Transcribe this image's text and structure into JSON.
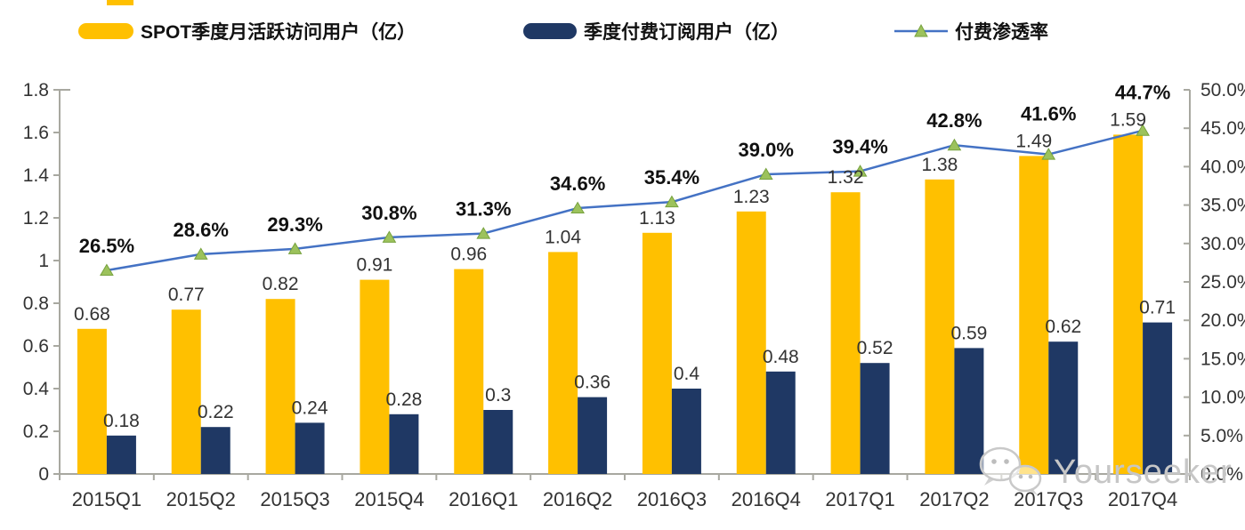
{
  "legend": [
    {
      "label": "SPOT季度月活跃访问用户（亿）",
      "color": "#FFC000"
    },
    {
      "label": "季度付费订阅用户（亿）",
      "color": "#1F3864"
    },
    {
      "label": "付费渗透率",
      "color": "#4472C4",
      "marker_color": "#9CC25C"
    }
  ],
  "chart_data": {
    "type": "bar+line",
    "categories": [
      "2015Q1",
      "2015Q2",
      "2015Q3",
      "2015Q4",
      "2016Q1",
      "2016Q2",
      "2016Q3",
      "2016Q4",
      "2017Q1",
      "2017Q2",
      "2017Q3",
      "2017Q4"
    ],
    "series": [
      {
        "name": "SPOT季度月活跃访问用户（亿）",
        "type": "bar",
        "color": "#FFC000",
        "values": [
          0.68,
          0.77,
          0.82,
          0.91,
          0.96,
          1.04,
          1.13,
          1.23,
          1.32,
          1.38,
          1.49,
          1.59
        ],
        "labels": [
          "0.68",
          "0.77",
          "0.82",
          "0.91",
          "0.96",
          "1.04",
          "1.13",
          "1.23",
          "1.32",
          "1.38",
          "1.49",
          "1.59"
        ]
      },
      {
        "name": "季度付费订阅用户（亿）",
        "type": "bar",
        "color": "#1F3864",
        "values": [
          0.18,
          0.22,
          0.24,
          0.28,
          0.3,
          0.36,
          0.4,
          0.48,
          0.52,
          0.59,
          0.62,
          0.71
        ],
        "labels": [
          "0.18",
          "0.22",
          "0.24",
          "0.28",
          "0.3",
          "0.36",
          "0.4",
          "0.48",
          "0.52",
          "0.59",
          "0.62",
          "0.71"
        ]
      },
      {
        "name": "付费渗透率",
        "type": "line",
        "axis": "right",
        "color": "#4472C4",
        "marker": "triangle",
        "marker_color": "#9CC25C",
        "values": [
          26.5,
          28.6,
          29.3,
          30.8,
          31.3,
          34.6,
          35.4,
          39.0,
          39.4,
          42.8,
          41.6,
          44.7
        ],
        "labels": [
          "26.5%",
          "28.6%",
          "29.3%",
          "30.8%",
          "31.3%",
          "34.6%",
          "35.4%",
          "39.0%",
          "39.4%",
          "42.8%",
          "41.6%",
          "44.7%"
        ]
      }
    ],
    "left_axis": {
      "min": 0,
      "max": 1.8,
      "step": 0.2,
      "ticks": [
        "0",
        "0.2",
        "0.4",
        "0.6",
        "0.8",
        "1",
        "1.2",
        "1.4",
        "1.6",
        "1.8"
      ]
    },
    "right_axis": {
      "min": 0,
      "max": 50,
      "step": 5,
      "ticks": [
        "0.0%",
        "5.0%",
        "10.0%",
        "15.0%",
        "20.0%",
        "25.0%",
        "30.0%",
        "35.0%",
        "40.0%",
        "45.0%",
        "50.0%"
      ]
    },
    "grid": false,
    "legend_position": "top",
    "axis_color": "#a8a8a0",
    "label_color": "#333333",
    "pct_label_color": "#111111"
  },
  "watermark": {
    "text": "Yourseeker",
    "icon": "wechat-icon"
  }
}
